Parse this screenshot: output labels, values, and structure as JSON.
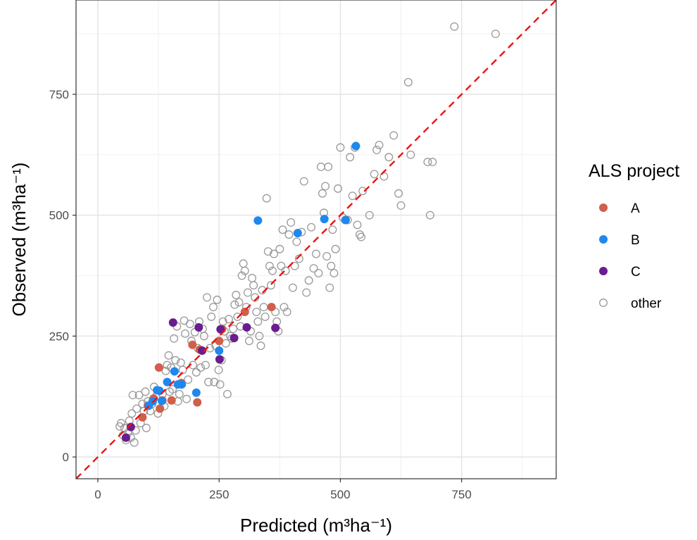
{
  "chart_data": {
    "type": "scatter",
    "xlabel": "Predicted (m³ha⁻¹)",
    "ylabel": "Observed (m³ha⁻¹)",
    "xlim": [
      -45,
      945
    ],
    "ylim": [
      -45,
      945
    ],
    "x_ticks": [
      0,
      250,
      500,
      750
    ],
    "y_ticks": [
      0,
      250,
      500,
      750
    ],
    "grid": true,
    "legend_title": "ALS project",
    "legend_position": "right",
    "reference_line": {
      "style": "dashed",
      "color": "#ee1111",
      "slope": 1,
      "intercept": 0
    },
    "series": [
      {
        "name": "A",
        "color": "#d0604a",
        "marker": "filled-circle",
        "points": [
          [
            92,
            82
          ],
          [
            103,
            106
          ],
          [
            115,
            121
          ],
          [
            126,
            185
          ],
          [
            128,
            100
          ],
          [
            133,
            117
          ],
          [
            152,
            117
          ],
          [
            172,
            153
          ],
          [
            195,
            232
          ],
          [
            205,
            113
          ],
          [
            210,
            222
          ],
          [
            250,
            240
          ],
          [
            256,
            265
          ],
          [
            303,
            300
          ],
          [
            358,
            310
          ]
        ]
      },
      {
        "name": "B",
        "color": "#1f88ee",
        "marker": "filled-circle",
        "points": [
          [
            105,
            106
          ],
          [
            113,
            115
          ],
          [
            122,
            138
          ],
          [
            127,
            137
          ],
          [
            132,
            116
          ],
          [
            143,
            155
          ],
          [
            158,
            177
          ],
          [
            165,
            150
          ],
          [
            173,
            150
          ],
          [
            203,
            133
          ],
          [
            250,
            220
          ],
          [
            330,
            489
          ],
          [
            412,
            463
          ],
          [
            467,
            492
          ],
          [
            511,
            490
          ],
          [
            532,
            643
          ]
        ]
      },
      {
        "name": "C",
        "color": "#6a1d8f",
        "marker": "filled-circle",
        "points": [
          [
            58,
            40
          ],
          [
            68,
            62
          ],
          [
            155,
            278
          ],
          [
            208,
            268
          ],
          [
            215,
            220
          ],
          [
            251,
            202
          ],
          [
            253,
            264
          ],
          [
            281,
            246
          ],
          [
            307,
            268
          ],
          [
            366,
            267
          ]
        ]
      },
      {
        "name": "other",
        "color": "#999999",
        "marker": "open-circle",
        "points": [
          [
            45,
            63
          ],
          [
            48,
            70
          ],
          [
            52,
            45
          ],
          [
            55,
            60
          ],
          [
            58,
            35
          ],
          [
            62,
            50
          ],
          [
            65,
            75
          ],
          [
            68,
            40
          ],
          [
            70,
            90
          ],
          [
            72,
            128
          ],
          [
            75,
            30
          ],
          [
            78,
            55
          ],
          [
            80,
            100
          ],
          [
            85,
            128
          ],
          [
            88,
            70
          ],
          [
            92,
            110
          ],
          [
            95,
            95
          ],
          [
            98,
            135
          ],
          [
            100,
            60
          ],
          [
            103,
            115
          ],
          [
            108,
            95
          ],
          [
            112,
            110
          ],
          [
            116,
            145
          ],
          [
            120,
            125
          ],
          [
            124,
            90
          ],
          [
            128,
            100
          ],
          [
            133,
            130
          ],
          [
            137,
            105
          ],
          [
            140,
            178
          ],
          [
            143,
            190
          ],
          [
            146,
            210
          ],
          [
            148,
            135
          ],
          [
            151,
            185
          ],
          [
            154,
            140
          ],
          [
            157,
            245
          ],
          [
            160,
            200
          ],
          [
            163,
            270
          ],
          [
            165,
            115
          ],
          [
            168,
            130
          ],
          [
            171,
            195
          ],
          [
            175,
            180
          ],
          [
            178,
            282
          ],
          [
            180,
            255
          ],
          [
            183,
            120
          ],
          [
            186,
            160
          ],
          [
            190,
            275
          ],
          [
            193,
            240
          ],
          [
            196,
            190
          ],
          [
            200,
            258
          ],
          [
            203,
            175
          ],
          [
            206,
            225
          ],
          [
            209,
            280
          ],
          [
            212,
            185
          ],
          [
            216,
            265
          ],
          [
            219,
            250
          ],
          [
            222,
            190
          ],
          [
            225,
            330
          ],
          [
            228,
            155
          ],
          [
            231,
            225
          ],
          [
            234,
            290
          ],
          [
            238,
            310
          ],
          [
            240,
            155
          ],
          [
            243,
            230
          ],
          [
            246,
            325
          ],
          [
            249,
            180
          ],
          [
            252,
            150
          ],
          [
            255,
            200
          ],
          [
            258,
            280
          ],
          [
            261,
            260
          ],
          [
            264,
            235
          ],
          [
            267,
            130
          ],
          [
            270,
            285
          ],
          [
            273,
            250
          ],
          [
            276,
            245
          ],
          [
            279,
            265
          ],
          [
            282,
            315
          ],
          [
            285,
            335
          ],
          [
            288,
            290
          ],
          [
            291,
            320
          ],
          [
            294,
            270
          ],
          [
            297,
            375
          ],
          [
            300,
            400
          ],
          [
            303,
            385
          ],
          [
            306,
            310
          ],
          [
            309,
            340
          ],
          [
            312,
            240
          ],
          [
            315,
            260
          ],
          [
            318,
            370
          ],
          [
            321,
            355
          ],
          [
            324,
            330
          ],
          [
            327,
            300
          ],
          [
            330,
            280
          ],
          [
            333,
            250
          ],
          [
            336,
            230
          ],
          [
            339,
            345
          ],
          [
            342,
            310
          ],
          [
            345,
            290
          ],
          [
            348,
            535
          ],
          [
            351,
            425
          ],
          [
            354,
            395
          ],
          [
            357,
            355
          ],
          [
            360,
            385
          ],
          [
            363,
            420
          ],
          [
            366,
            300
          ],
          [
            369,
            280
          ],
          [
            372,
            260
          ],
          [
            375,
            430
          ],
          [
            378,
            395
          ],
          [
            381,
            470
          ],
          [
            384,
            310
          ],
          [
            387,
            385
          ],
          [
            390,
            300
          ],
          [
            394,
            460
          ],
          [
            398,
            485
          ],
          [
            402,
            350
          ],
          [
            406,
            395
          ],
          [
            410,
            445
          ],
          [
            415,
            410
          ],
          [
            420,
            465
          ],
          [
            425,
            570
          ],
          [
            430,
            340
          ],
          [
            435,
            365
          ],
          [
            440,
            475
          ],
          [
            445,
            390
          ],
          [
            450,
            420
          ],
          [
            455,
            380
          ],
          [
            460,
            600
          ],
          [
            463,
            545
          ],
          [
            466,
            505
          ],
          [
            469,
            560
          ],
          [
            472,
            415
          ],
          [
            475,
            600
          ],
          [
            478,
            350
          ],
          [
            481,
            395
          ],
          [
            484,
            470
          ],
          [
            487,
            380
          ],
          [
            490,
            430
          ],
          [
            495,
            555
          ],
          [
            500,
            640
          ],
          [
            505,
            495
          ],
          [
            510,
            490
          ],
          [
            515,
            490
          ],
          [
            520,
            620
          ],
          [
            525,
            540
          ],
          [
            530,
            640
          ],
          [
            535,
            480
          ],
          [
            540,
            460
          ],
          [
            543,
            455
          ],
          [
            546,
            550
          ],
          [
            560,
            500
          ],
          [
            570,
            585
          ],
          [
            575,
            635
          ],
          [
            580,
            645
          ],
          [
            590,
            580
          ],
          [
            600,
            620
          ],
          [
            610,
            665
          ],
          [
            620,
            545
          ],
          [
            625,
            520
          ],
          [
            640,
            775
          ],
          [
            645,
            625
          ],
          [
            680,
            610
          ],
          [
            685,
            500
          ],
          [
            690,
            610
          ],
          [
            735,
            890
          ],
          [
            820,
            875
          ]
        ]
      }
    ]
  }
}
